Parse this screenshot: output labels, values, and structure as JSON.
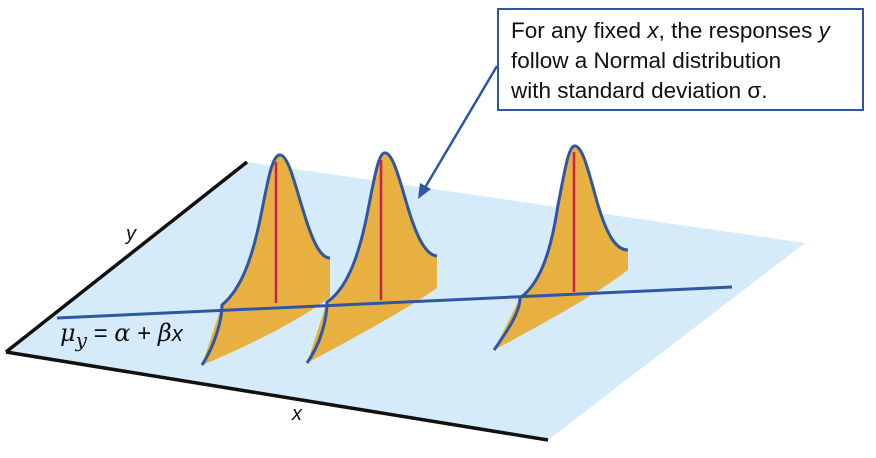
{
  "callout": {
    "line1_pre": "For any fixed ",
    "line1_var": "x",
    "line1_mid": ", the responses ",
    "line1_var2": "y",
    "line2": "follow a Normal distribution",
    "line3": "with standard deviation σ."
  },
  "axes": {
    "y_label": "y",
    "x_label": "x"
  },
  "regression_equation": {
    "mu": "μ",
    "subscript": "y",
    "equals": " = ",
    "alpha": "α",
    "plus": " + ",
    "beta": "β",
    "x": "x"
  },
  "colors": {
    "plane_fill": "#d6ebf9",
    "curve_fill": "#e8b040",
    "curve_stroke": "#2f56a3",
    "line_stroke": "#2f56a3",
    "mean_line": "#cc1f4e",
    "axis": "#111111"
  }
}
